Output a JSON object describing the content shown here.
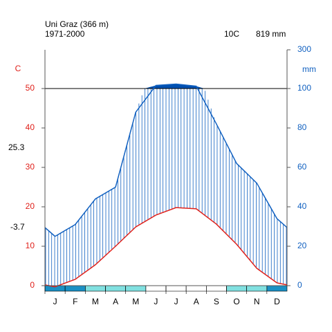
{
  "chart_data": {
    "type": "climate",
    "title": "Uni Graz (366 m)",
    "subtitle": "1971-2000",
    "mean_temperature": "10C",
    "annual_precipitation": "819 mm",
    "ylabel": "C",
    "y2label": "mm",
    "annotations": [
      "25.3",
      "-3.7"
    ],
    "categories": [
      "J",
      "F",
      "M",
      "A",
      "M",
      "J",
      "J",
      "A",
      "S",
      "O",
      "N",
      "D"
    ],
    "series": [
      {
        "name": "temperature",
        "color": "#e0201a",
        "values": [
          -0.3,
          1.6,
          5.3,
          10,
          14.9,
          17.9,
          19.8,
          19.5,
          15.6,
          10.5,
          4.4,
          0.7
        ]
      },
      {
        "name": "precipitation",
        "color": "#1060c0",
        "axis": "y2",
        "values": [
          25,
          31,
          44,
          50,
          88,
          116,
          123,
          112,
          82,
          62,
          52,
          34
        ]
      }
    ],
    "frost_colors": [
      "#1a90c4",
      "#1a90c4",
      "#80e0e0",
      "#80e0e0",
      "#80e0e0",
      "#ffffff",
      "#ffffff",
      "#ffffff",
      "#ffffff",
      "#80e0e0",
      "#80e0e0",
      "#1a90c4"
    ],
    "ylim": [
      0,
      50
    ],
    "yticks": [
      0,
      10,
      20,
      30,
      40,
      50
    ],
    "y2lim": [
      0,
      300
    ],
    "y2ticks": [
      0,
      20,
      40,
      60,
      80,
      100,
      300
    ]
  }
}
